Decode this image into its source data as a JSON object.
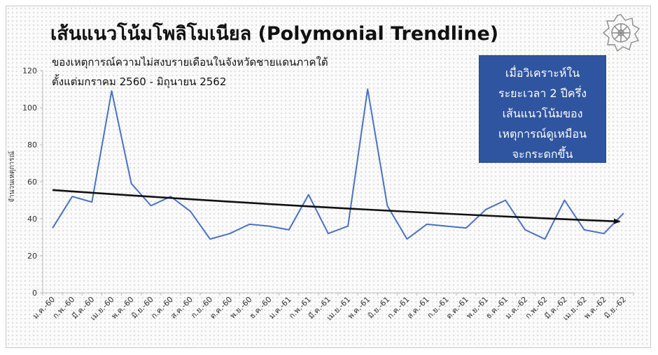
{
  "title": "เส้นแนวโน้มโพลิโมเนียล (Polymonial Trendline)",
  "subtitle_line1": "ของเหตุการณ์ความไม่สงบรายเดือนในจังหวัดชายแดนภาคใต้",
  "subtitle_line2": "ตั้งแต่มกราคม 2560 - มิถุนายน 2562",
  "callout_lines": [
    "เมื่อวิเคราะห์ใน",
    "ระยะเวลา 2 ปีครึ่ง",
    "เส้นแนวโน้มของ",
    "เหตุการณ์ดูเหมือน",
    "จะกระดกขึ้น"
  ],
  "colors": {
    "series": "#4a72c4",
    "trend": "#111111",
    "callout_bg": "#2f55a0"
  },
  "icons": {
    "emblem": "wheel-emblem-icon"
  },
  "chart_data": {
    "type": "line",
    "title": "เส้นแนวโน้มโพลิโมเนียล (Polymonial Trendline)",
    "ylabel": "จำนวนเหตุการณ์",
    "xlabel": "",
    "ylim": [
      0,
      120
    ],
    "yticks": [
      0,
      20,
      40,
      60,
      80,
      100,
      120
    ],
    "grid": false,
    "categories": [
      "ม.ค.-60",
      "ก.พ.-60",
      "มี.ค.-60",
      "เม.ย.-60",
      "พ.ค.-60",
      "มิ.ย.-60",
      "ก.ค.-60",
      "ส.ค.-60",
      "ก.ย.-60",
      "ต.ค.-60",
      "พ.ย.-60",
      "ธ.ค.-60",
      "ม.ค.-61",
      "ก.พ.-61",
      "มี.ค.-61",
      "เม.ย.-61",
      "พ.ค.-61",
      "มิ.ย.-61",
      "ก.ค.-61",
      "ส.ค.-61",
      "ก.ย.-61",
      "ต.ค.-61",
      "พ.ย.-61",
      "ธ.ค.-61",
      "ม.ค.-62",
      "ก.พ.-62",
      "มี.ค.-62",
      "เม.ย.-62",
      "พ.ค.-62",
      "มิ.ย.-62"
    ],
    "series": [
      {
        "values": [
          35,
          52,
          49,
          109,
          59,
          47,
          52,
          44,
          29,
          32,
          37,
          36,
          34,
          53,
          32,
          36,
          110,
          47,
          29,
          37,
          36,
          35,
          45,
          50,
          34,
          29,
          50,
          34,
          32,
          43
        ]
      }
    ],
    "trendline": {
      "type": "polynomial",
      "start": 55.5,
      "end": 38.5
    }
  }
}
